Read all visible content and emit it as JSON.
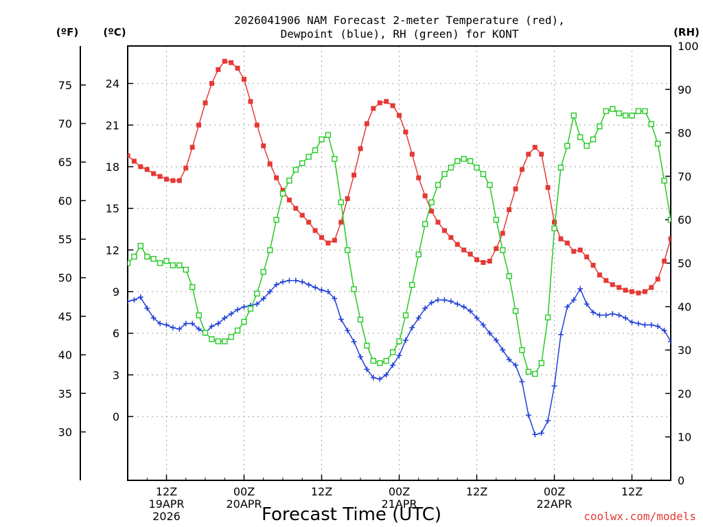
{
  "colors": {
    "temp": "#e53935",
    "dewpoint": "#1f3fd8",
    "rh": "#22c922",
    "grid": "#9e9e9e",
    "credit": "#e53935"
  },
  "chart_data": {
    "type": "line",
    "title_line1": "2026041906 NAM Forecast 2-meter Temperature (red),",
    "title_line2": "Dewpoint (blue), RH (green) for KONT",
    "xlabel": "Forecast Time (UTC)",
    "credit": "coolwx.com/models",
    "unit_f": "(ºF)",
    "unit_c": "(ºC)",
    "unit_rh": "(RH)",
    "x_unit": "forecast hour (from 2026041906)",
    "xlim": [
      0,
      84
    ],
    "ylim_c": [
      -4.6,
      26.7
    ],
    "ylim_rh": [
      0,
      100
    ],
    "grid": true,
    "x_ticks": [
      {
        "hour": 6,
        "line1": "12Z",
        "line2": "19APR",
        "line3": "2026"
      },
      {
        "hour": 18,
        "line1": "00Z",
        "line2": "20APR",
        "line3": ""
      },
      {
        "hour": 30,
        "line1": "12Z",
        "line2": "",
        "line3": ""
      },
      {
        "hour": 42,
        "line1": "00Z",
        "line2": "21APR",
        "line3": ""
      },
      {
        "hour": 54,
        "line1": "12Z",
        "line2": "",
        "line3": ""
      },
      {
        "hour": 66,
        "line1": "00Z",
        "line2": "22APR",
        "line3": ""
      },
      {
        "hour": 78,
        "line1": "12Z",
        "line2": "",
        "line3": ""
      }
    ],
    "y_ticks_c": [
      "0",
      "3",
      "6",
      "9",
      "12",
      "15",
      "18",
      "21",
      "24"
    ],
    "y_ticks_f": [
      "30",
      "35",
      "40",
      "45",
      "50",
      "55",
      "60",
      "65",
      "70",
      "75"
    ],
    "y_ticks_rh": [
      "0",
      "10",
      "20",
      "30",
      "40",
      "50",
      "60",
      "70",
      "80",
      "90",
      "100"
    ],
    "series": [
      {
        "name": "Temperature",
        "values": [
          [
            0,
            18.8
          ],
          [
            1,
            18.4
          ],
          [
            2,
            18.0
          ],
          [
            3,
            17.8
          ],
          [
            4,
            17.5
          ],
          [
            5,
            17.3
          ],
          [
            6,
            17.1
          ],
          [
            7,
            17.0
          ],
          [
            8,
            17.0
          ],
          [
            9,
            17.9
          ],
          [
            10,
            19.4
          ],
          [
            11,
            21.0
          ],
          [
            12,
            22.6
          ],
          [
            13,
            24.0
          ],
          [
            14,
            25.0
          ],
          [
            15,
            25.6
          ],
          [
            16,
            25.5
          ],
          [
            17,
            25.1
          ],
          [
            18,
            24.3
          ],
          [
            19,
            22.7
          ],
          [
            20,
            21.0
          ],
          [
            21,
            19.5
          ],
          [
            22,
            18.2
          ],
          [
            23,
            17.2
          ],
          [
            24,
            16.3
          ],
          [
            25,
            15.6
          ],
          [
            26,
            15.0
          ],
          [
            27,
            14.5
          ],
          [
            28,
            14.0
          ],
          [
            29,
            13.4
          ],
          [
            30,
            12.9
          ],
          [
            31,
            12.5
          ],
          [
            32,
            12.7
          ],
          [
            33,
            14.0
          ],
          [
            34,
            15.7
          ],
          [
            35,
            17.4
          ],
          [
            36,
            19.3
          ],
          [
            37,
            21.1
          ],
          [
            38,
            22.2
          ],
          [
            39,
            22.6
          ],
          [
            40,
            22.7
          ],
          [
            41,
            22.4
          ],
          [
            42,
            21.7
          ],
          [
            43,
            20.5
          ],
          [
            44,
            18.9
          ],
          [
            45,
            17.2
          ],
          [
            46,
            15.9
          ],
          [
            47,
            14.8
          ],
          [
            48,
            14.0
          ],
          [
            49,
            13.4
          ],
          [
            50,
            12.9
          ],
          [
            51,
            12.4
          ],
          [
            52,
            12.0
          ],
          [
            53,
            11.7
          ],
          [
            54,
            11.3
          ],
          [
            55,
            11.1
          ],
          [
            56,
            11.2
          ],
          [
            57,
            12.1
          ],
          [
            58,
            13.2
          ],
          [
            59,
            14.9
          ],
          [
            60,
            16.4
          ],
          [
            61,
            17.8
          ],
          [
            62,
            18.9
          ],
          [
            63,
            19.4
          ],
          [
            64,
            18.9
          ],
          [
            65,
            16.5
          ],
          [
            66,
            14.0
          ],
          [
            67,
            12.8
          ],
          [
            68,
            12.5
          ],
          [
            69,
            11.9
          ],
          [
            70,
            12.0
          ],
          [
            71,
            11.5
          ],
          [
            72,
            10.9
          ],
          [
            73,
            10.2
          ],
          [
            74,
            9.8
          ],
          [
            75,
            9.5
          ],
          [
            76,
            9.3
          ],
          [
            77,
            9.1
          ],
          [
            78,
            9.0
          ],
          [
            79,
            8.9
          ],
          [
            80,
            9.0
          ],
          [
            81,
            9.3
          ],
          [
            82,
            9.9
          ],
          [
            83,
            11.2
          ],
          [
            84,
            12.8
          ]
        ]
      },
      {
        "name": "Dewpoint",
        "values": [
          [
            0,
            8.3
          ],
          [
            1,
            8.4
          ],
          [
            2,
            8.6
          ],
          [
            3,
            7.8
          ],
          [
            4,
            7.1
          ],
          [
            5,
            6.7
          ],
          [
            6,
            6.6
          ],
          [
            7,
            6.4
          ],
          [
            8,
            6.3
          ],
          [
            9,
            6.7
          ],
          [
            10,
            6.7
          ],
          [
            11,
            6.3
          ],
          [
            12,
            6.0
          ],
          [
            13,
            6.5
          ],
          [
            14,
            6.7
          ],
          [
            15,
            7.1
          ],
          [
            16,
            7.4
          ],
          [
            17,
            7.7
          ],
          [
            18,
            7.9
          ],
          [
            19,
            8.0
          ],
          [
            20,
            8.1
          ],
          [
            21,
            8.5
          ],
          [
            22,
            9.0
          ],
          [
            23,
            9.5
          ],
          [
            24,
            9.7
          ],
          [
            25,
            9.8
          ],
          [
            26,
            9.8
          ],
          [
            27,
            9.7
          ],
          [
            28,
            9.5
          ],
          [
            29,
            9.3
          ],
          [
            30,
            9.1
          ],
          [
            31,
            9.0
          ],
          [
            32,
            8.5
          ],
          [
            33,
            7.0
          ],
          [
            34,
            6.2
          ],
          [
            35,
            5.4
          ],
          [
            36,
            4.3
          ],
          [
            37,
            3.4
          ],
          [
            38,
            2.8
          ],
          [
            39,
            2.7
          ],
          [
            40,
            3.0
          ],
          [
            41,
            3.7
          ],
          [
            42,
            4.4
          ],
          [
            43,
            5.5
          ],
          [
            44,
            6.4
          ],
          [
            45,
            7.1
          ],
          [
            46,
            7.8
          ],
          [
            47,
            8.2
          ],
          [
            48,
            8.4
          ],
          [
            49,
            8.4
          ],
          [
            50,
            8.3
          ],
          [
            51,
            8.1
          ],
          [
            52,
            7.9
          ],
          [
            53,
            7.6
          ],
          [
            54,
            7.1
          ],
          [
            55,
            6.6
          ],
          [
            56,
            6.0
          ],
          [
            57,
            5.5
          ],
          [
            58,
            4.8
          ],
          [
            59,
            4.1
          ],
          [
            60,
            3.7
          ],
          [
            61,
            2.5
          ],
          [
            62,
            0.1
          ],
          [
            63,
            -1.3
          ],
          [
            64,
            -1.2
          ],
          [
            65,
            -0.3
          ],
          [
            66,
            2.2
          ],
          [
            67,
            5.9
          ],
          [
            68,
            7.9
          ],
          [
            69,
            8.4
          ],
          [
            70,
            9.2
          ],
          [
            71,
            8.1
          ],
          [
            72,
            7.5
          ],
          [
            73,
            7.3
          ],
          [
            74,
            7.3
          ],
          [
            75,
            7.4
          ],
          [
            76,
            7.3
          ],
          [
            77,
            7.1
          ],
          [
            78,
            6.8
          ],
          [
            79,
            6.7
          ],
          [
            80,
            6.6
          ],
          [
            81,
            6.6
          ],
          [
            82,
            6.5
          ],
          [
            83,
            6.2
          ],
          [
            84,
            5.4
          ]
        ]
      },
      {
        "name": "RH",
        "values": [
          [
            0,
            50
          ],
          [
            1,
            51.5
          ],
          [
            2,
            54
          ],
          [
            3,
            51.5
          ],
          [
            4,
            51
          ],
          [
            5,
            50
          ],
          [
            6,
            50.5
          ],
          [
            7,
            49.5
          ],
          [
            8,
            49.5
          ],
          [
            9,
            48.5
          ],
          [
            10,
            44.5
          ],
          [
            11,
            38
          ],
          [
            12,
            34
          ],
          [
            13,
            32.5
          ],
          [
            14,
            32
          ],
          [
            15,
            32
          ],
          [
            16,
            33
          ],
          [
            17,
            34.5
          ],
          [
            18,
            36.5
          ],
          [
            19,
            39.5
          ],
          [
            20,
            43
          ],
          [
            21,
            48
          ],
          [
            22,
            53
          ],
          [
            23,
            60
          ],
          [
            24,
            66
          ],
          [
            25,
            69
          ],
          [
            26,
            71.5
          ],
          [
            27,
            73
          ],
          [
            28,
            74.5
          ],
          [
            29,
            76
          ],
          [
            30,
            78.5
          ],
          [
            31,
            79.5
          ],
          [
            32,
            74
          ],
          [
            33,
            64
          ],
          [
            34,
            53
          ],
          [
            35,
            44
          ],
          [
            36,
            37
          ],
          [
            37,
            31
          ],
          [
            38,
            27.5
          ],
          [
            39,
            27
          ],
          [
            40,
            27.5
          ],
          [
            41,
            29.5
          ],
          [
            42,
            32
          ],
          [
            43,
            38
          ],
          [
            44,
            45
          ],
          [
            45,
            52
          ],
          [
            46,
            59
          ],
          [
            47,
            64
          ],
          [
            48,
            68
          ],
          [
            49,
            70.5
          ],
          [
            50,
            72
          ],
          [
            51,
            73.5
          ],
          [
            52,
            74
          ],
          [
            53,
            73.5
          ],
          [
            54,
            72
          ],
          [
            55,
            70.5
          ],
          [
            56,
            68
          ],
          [
            57,
            60
          ],
          [
            58,
            53
          ],
          [
            59,
            47
          ],
          [
            60,
            39
          ],
          [
            61,
            30
          ],
          [
            62,
            25
          ],
          [
            63,
            24.5
          ],
          [
            64,
            27
          ],
          [
            65,
            37.5
          ],
          [
            66,
            58
          ],
          [
            67,
            72
          ],
          [
            68,
            77
          ],
          [
            69,
            84
          ],
          [
            70,
            79
          ],
          [
            71,
            77
          ],
          [
            72,
            78.5
          ],
          [
            73,
            81.5
          ],
          [
            74,
            85
          ],
          [
            75,
            85.5
          ],
          [
            76,
            84.5
          ],
          [
            77,
            84
          ],
          [
            78,
            84
          ],
          [
            79,
            85
          ],
          [
            80,
            85
          ],
          [
            81,
            82
          ],
          [
            82,
            77.5
          ],
          [
            83,
            69
          ],
          [
            84,
            60
          ]
        ]
      }
    ]
  }
}
